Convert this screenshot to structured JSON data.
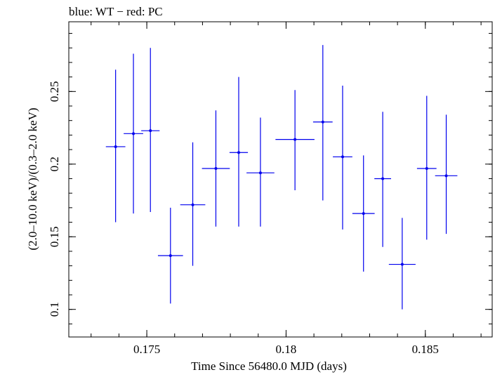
{
  "chart_data": {
    "type": "scatter",
    "title": "blue: WT − red: PC",
    "xlabel": "Time Since 56480.0 MJD (days)",
    "ylabel": "(2.0–10.0 keV)/(0.3–2.0 keV)",
    "xlim": [
      0.1722,
      0.1874
    ],
    "ylim": [
      0.081,
      0.298
    ],
    "xticks": [
      0.175,
      0.18,
      0.185
    ],
    "xtick_labels": [
      "0.175",
      "0.18",
      "0.185"
    ],
    "yticks": [
      0.1,
      0.15,
      0.2,
      0.25
    ],
    "ytick_labels": [
      "0.1",
      "0.15",
      "0.2",
      "0.25"
    ],
    "grid": false,
    "series": [
      {
        "color": "#0000ee",
        "points": [
          {
            "x": 0.17388,
            "y": 0.212,
            "xerr": 0.00035,
            "ylo": 0.16,
            "yhi": 0.265
          },
          {
            "x": 0.17452,
            "y": 0.221,
            "xerr": 0.00035,
            "ylo": 0.166,
            "yhi": 0.276
          },
          {
            "x": 0.17513,
            "y": 0.223,
            "xerr": 0.00033,
            "ylo": 0.167,
            "yhi": 0.28
          },
          {
            "x": 0.17585,
            "y": 0.137,
            "xerr": 0.00045,
            "ylo": 0.104,
            "yhi": 0.17
          },
          {
            "x": 0.17665,
            "y": 0.172,
            "xerr": 0.00045,
            "ylo": 0.13,
            "yhi": 0.215
          },
          {
            "x": 0.17748,
            "y": 0.197,
            "xerr": 0.0005,
            "ylo": 0.157,
            "yhi": 0.237
          },
          {
            "x": 0.1783,
            "y": 0.208,
            "xerr": 0.00033,
            "ylo": 0.157,
            "yhi": 0.26
          },
          {
            "x": 0.17908,
            "y": 0.194,
            "xerr": 0.0005,
            "ylo": 0.157,
            "yhi": 0.232
          },
          {
            "x": 0.18032,
            "y": 0.217,
            "xerr": 0.0007,
            "ylo": 0.182,
            "yhi": 0.251
          },
          {
            "x": 0.18132,
            "y": 0.229,
            "xerr": 0.00035,
            "ylo": 0.175,
            "yhi": 0.282
          },
          {
            "x": 0.18203,
            "y": 0.205,
            "xerr": 0.00035,
            "ylo": 0.155,
            "yhi": 0.254
          },
          {
            "x": 0.18278,
            "y": 0.166,
            "xerr": 0.0004,
            "ylo": 0.126,
            "yhi": 0.206
          },
          {
            "x": 0.18347,
            "y": 0.19,
            "xerr": 0.0003,
            "ylo": 0.143,
            "yhi": 0.236
          },
          {
            "x": 0.18417,
            "y": 0.131,
            "xerr": 0.00048,
            "ylo": 0.1,
            "yhi": 0.163
          },
          {
            "x": 0.18505,
            "y": 0.197,
            "xerr": 0.00035,
            "ylo": 0.148,
            "yhi": 0.247
          },
          {
            "x": 0.18575,
            "y": 0.192,
            "xerr": 0.0004,
            "ylo": 0.152,
            "yhi": 0.234
          }
        ]
      }
    ]
  }
}
